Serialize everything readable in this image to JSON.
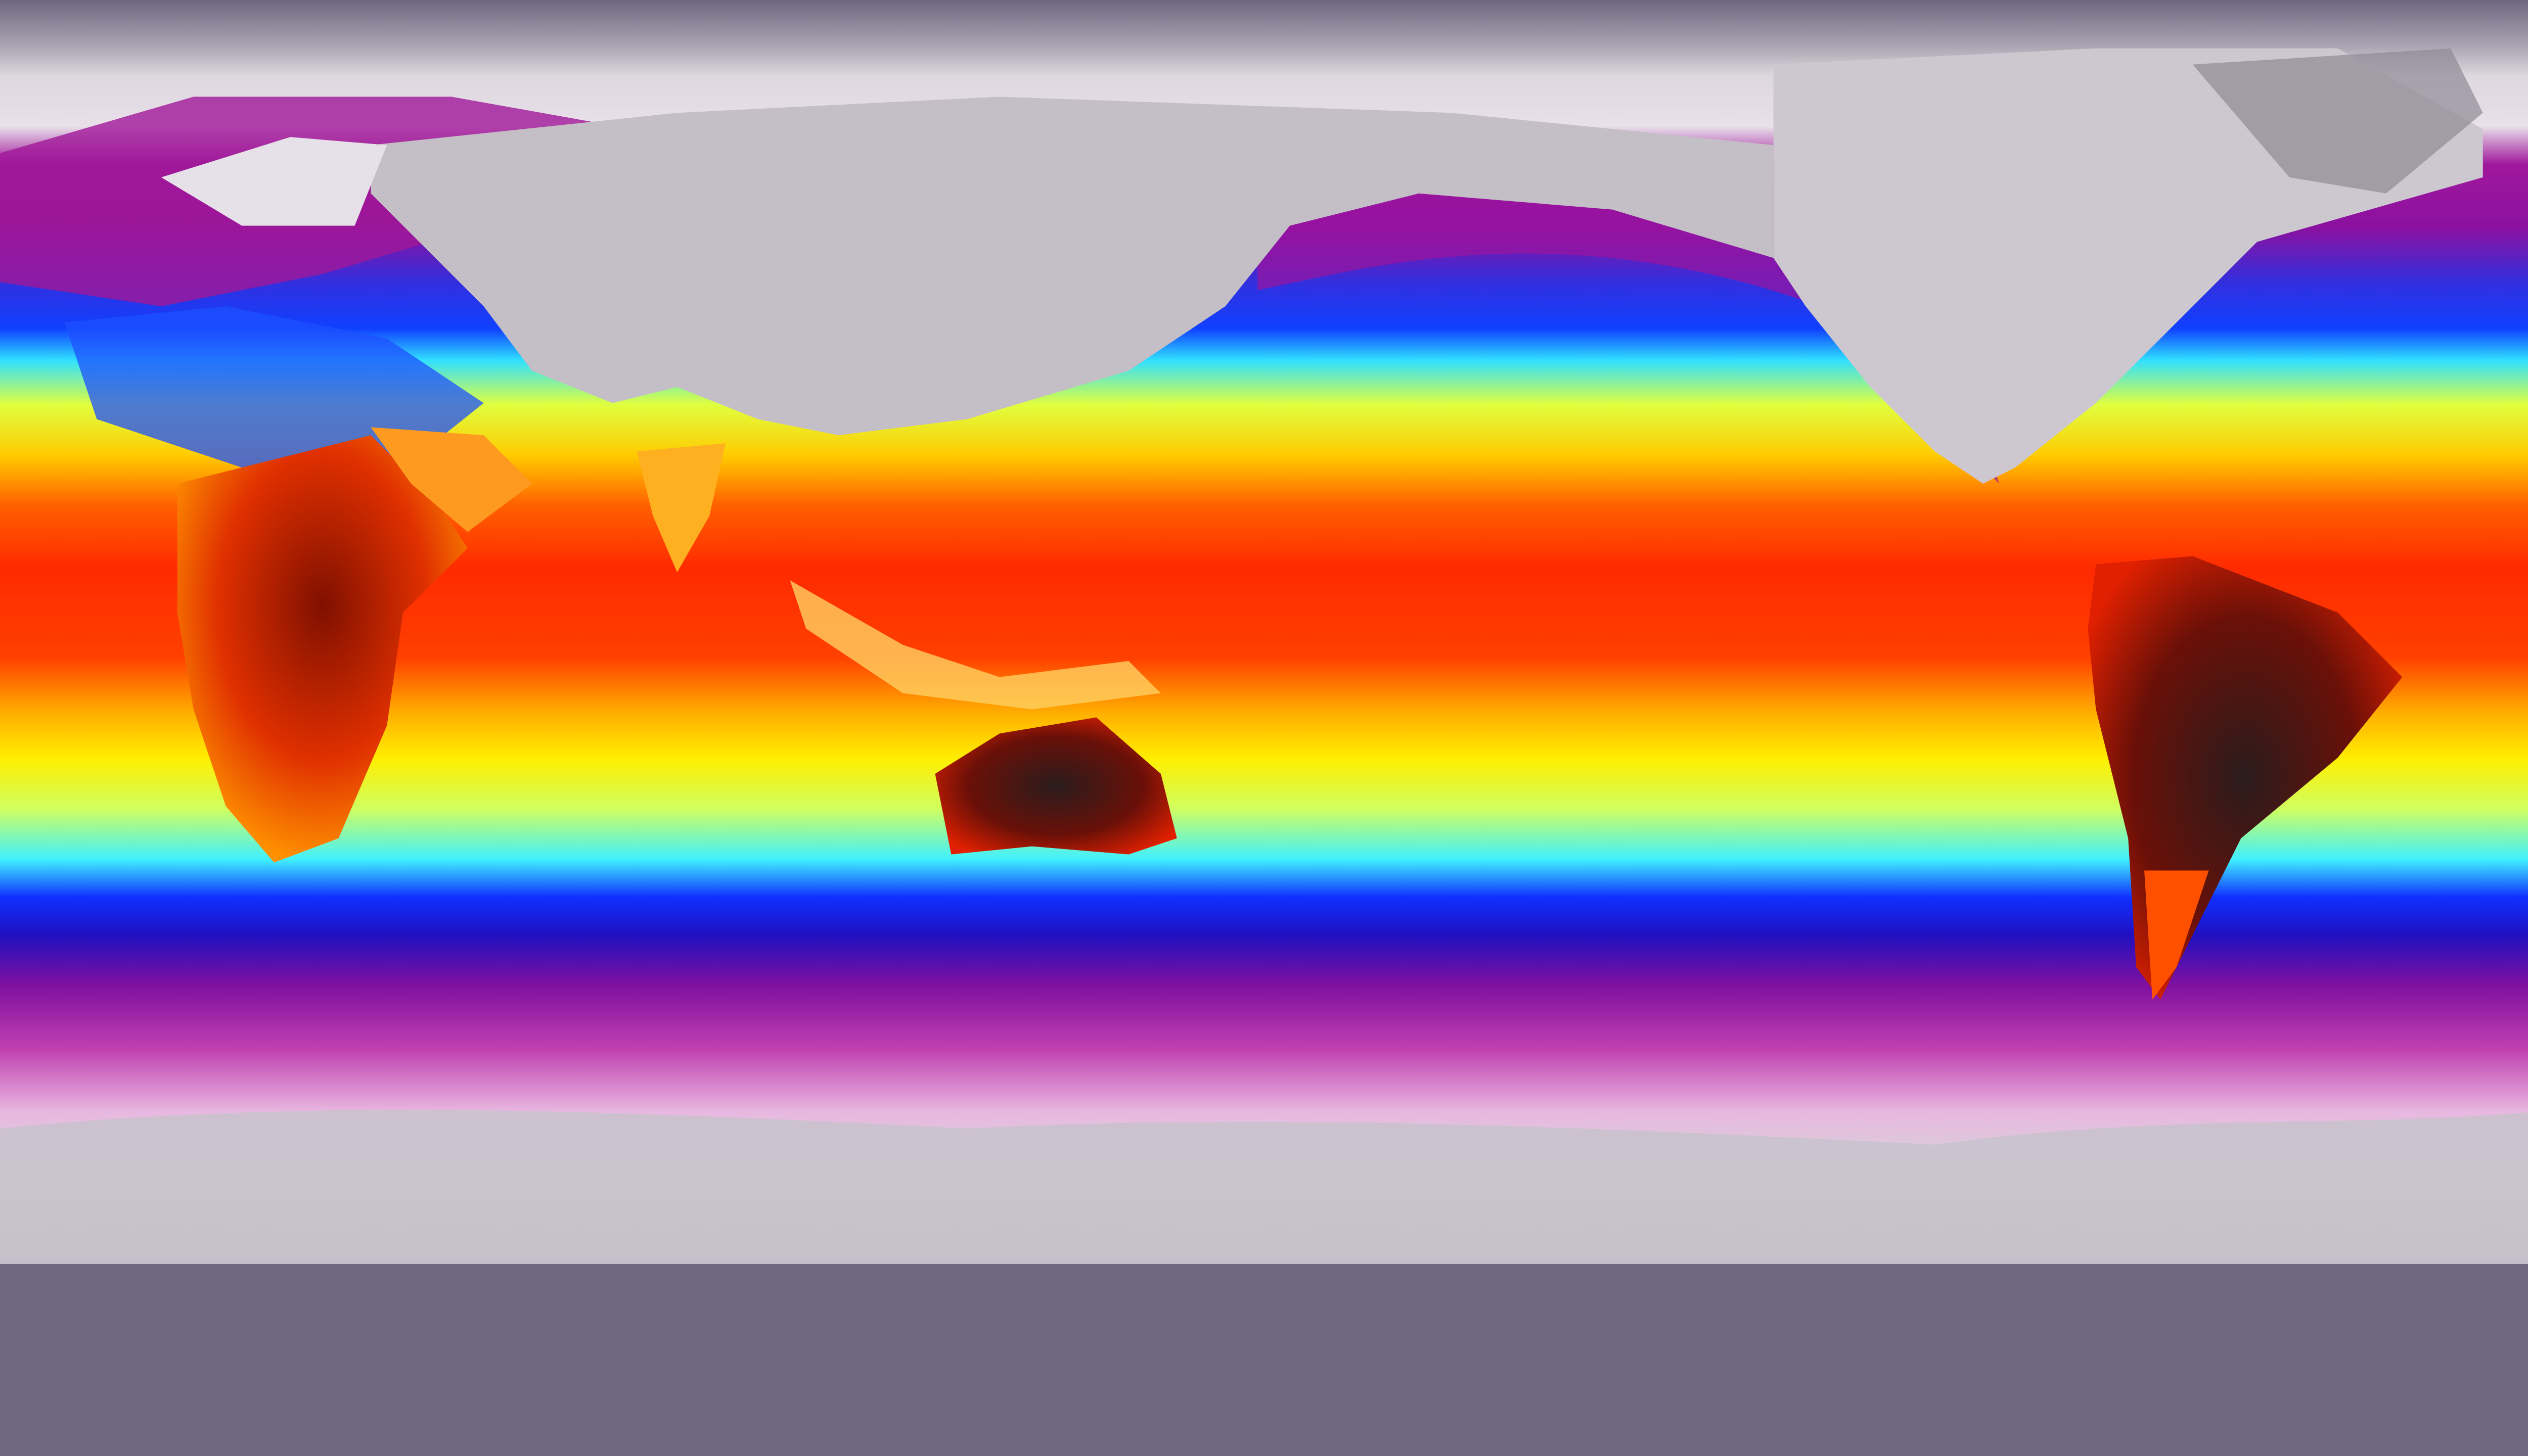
{
  "map": {
    "projection": "equirectangular",
    "kind": "global temperature field",
    "colors": {
      "cold_extreme": "#6d6880",
      "ice": "#e4dce6",
      "magenta": "#a0189c",
      "blue": "#1040ff",
      "cyan": "#30e0ff",
      "yellow": "#f0ff30",
      "orange": "#ff8a00",
      "red": "#ff2a00",
      "hot_extreme": "#2a1c1c",
      "land_cold": "#b8b4bc"
    }
  }
}
